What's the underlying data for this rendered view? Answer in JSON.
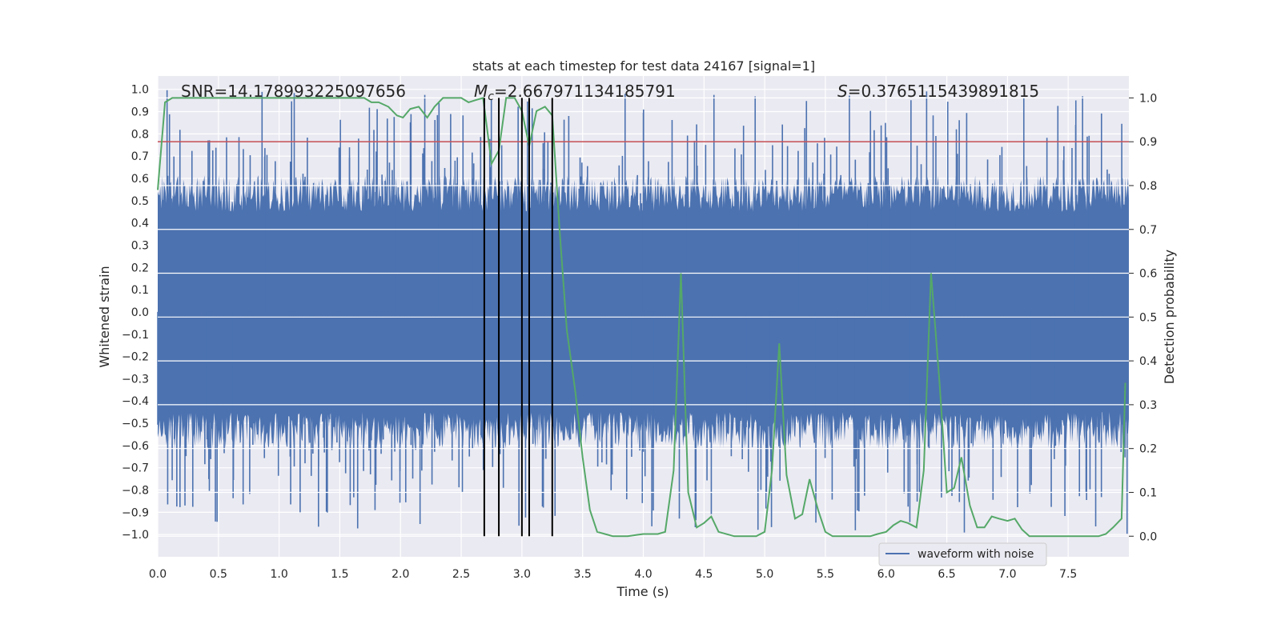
{
  "chart_data": {
    "type": "line",
    "title": "stats at each timestep for test data 24167 [signal=1]",
    "xlabel": "Time (s)",
    "ylabel_left": "Whitened strain",
    "ylabel_right": "Detection probability",
    "xlim": [
      0.0,
      8.0
    ],
    "ylim_left": [
      -1.1,
      1.06
    ],
    "ylim_right": [
      -0.047,
      1.05
    ],
    "x_ticks": [
      0.0,
      0.5,
      1.0,
      1.5,
      2.0,
      2.5,
      3.0,
      3.5,
      4.0,
      4.5,
      5.0,
      5.5,
      6.0,
      6.5,
      7.0,
      7.5
    ],
    "x_tick_labels": [
      "0.0",
      "0.5",
      "1.0",
      "1.5",
      "2.0",
      "2.5",
      "3.0",
      "3.5",
      "4.0",
      "4.5",
      "5.0",
      "5.5",
      "6.0",
      "6.5",
      "7.0",
      "7.5"
    ],
    "y_left_ticks": [
      1.0,
      0.9,
      0.8,
      0.7,
      0.6,
      0.5,
      0.4,
      0.3,
      0.2,
      0.1,
      0.0,
      -0.1,
      -0.2,
      -0.3,
      -0.4,
      -0.5,
      -0.6,
      -0.7,
      -0.8,
      -0.9,
      -1.0
    ],
    "y_left_tick_labels": [
      "1.0",
      "0.9",
      "0.8",
      "0.7",
      "0.6",
      "0.5",
      "0.4",
      "0.3",
      "0.2",
      "0.1",
      "0.0",
      "−0.1",
      "−0.2",
      "−0.3",
      "−0.4",
      "−0.5",
      "−0.6",
      "−0.7",
      "−0.8",
      "−0.9",
      "−1.0"
    ],
    "y_right_ticks": [
      1.0,
      0.9,
      0.8,
      0.7,
      0.6,
      0.5,
      0.4,
      0.3,
      0.2,
      0.1,
      0.0
    ],
    "y_right_tick_labels": [
      "1.0",
      "0.9",
      "0.8",
      "0.7",
      "0.6",
      "0.5",
      "0.4",
      "0.3",
      "0.2",
      "0.1",
      "0.0"
    ],
    "annotations": {
      "snr_label": "SNR=14.178993225097656",
      "mc_symbol": "M",
      "mc_subscript": "c",
      "mc_value": "=2.667971134185791",
      "s_symbol": "S",
      "s_value": "=0.3765115439891815"
    },
    "threshold": {
      "value_right_axis": 0.9,
      "color": "#c44e52"
    },
    "vertical_markers": [
      2.69,
      2.81,
      3.0,
      3.06,
      3.25
    ],
    "series": [
      {
        "name": "waveform with noise",
        "axis": "left",
        "color": "#4c72b0",
        "style": "dense noise trace",
        "envelope": {
          "core_abs": 0.45,
          "typical_peak_abs": 0.75,
          "max_abs": 1.0
        }
      },
      {
        "name": "detection probability",
        "axis": "right",
        "color": "#55a868",
        "x": [
          0.0,
          0.06,
          0.12,
          0.2,
          0.4,
          0.6,
          0.8,
          1.0,
          1.2,
          1.4,
          1.6,
          1.7,
          1.76,
          1.82,
          1.9,
          1.97,
          2.02,
          2.08,
          2.15,
          2.22,
          2.28,
          2.35,
          2.42,
          2.5,
          2.56,
          2.62,
          2.68,
          2.75,
          2.81,
          2.87,
          2.94,
          3.0,
          3.06,
          3.12,
          3.19,
          3.25,
          3.31,
          3.37,
          3.44,
          3.5,
          3.56,
          3.62,
          3.75,
          3.87,
          4.0,
          4.12,
          4.18,
          4.25,
          4.31,
          4.37,
          4.44,
          4.5,
          4.56,
          4.62,
          4.75,
          4.87,
          4.93,
          5.0,
          5.06,
          5.12,
          5.18,
          5.25,
          5.31,
          5.37,
          5.44,
          5.5,
          5.56,
          5.62,
          5.75,
          5.87,
          5.93,
          6.0,
          6.06,
          6.12,
          6.18,
          6.25,
          6.31,
          6.37,
          6.44,
          6.5,
          6.56,
          6.62,
          6.69,
          6.75,
          6.81,
          6.87,
          6.93,
          7.0,
          7.06,
          7.12,
          7.18,
          7.25,
          7.37,
          7.5,
          7.62,
          7.75,
          7.81,
          7.87,
          7.94,
          7.97
        ],
        "y": [
          0.79,
          0.99,
          1.0,
          1.0,
          1.0,
          1.0,
          1.0,
          1.0,
          1.0,
          1.0,
          1.0,
          1.0,
          0.99,
          0.99,
          0.98,
          0.96,
          0.955,
          0.975,
          0.98,
          0.955,
          0.98,
          1.0,
          1.0,
          1.0,
          0.99,
          0.995,
          1.0,
          0.85,
          0.88,
          1.0,
          1.0,
          0.97,
          0.89,
          0.97,
          0.98,
          0.96,
          0.7,
          0.47,
          0.33,
          0.18,
          0.06,
          0.01,
          0.0,
          0.0,
          0.005,
          0.005,
          0.01,
          0.15,
          0.6,
          0.1,
          0.02,
          0.03,
          0.045,
          0.01,
          0.0,
          0.0,
          0.0,
          0.01,
          0.15,
          0.44,
          0.14,
          0.04,
          0.05,
          0.13,
          0.06,
          0.01,
          0.0,
          0.0,
          0.0,
          0.0,
          0.005,
          0.01,
          0.025,
          0.035,
          0.03,
          0.02,
          0.15,
          0.6,
          0.35,
          0.1,
          0.11,
          0.18,
          0.07,
          0.02,
          0.02,
          0.045,
          0.04,
          0.035,
          0.04,
          0.015,
          0.0,
          0.0,
          0.0,
          0.0,
          0.0,
          0.0,
          0.005,
          0.02,
          0.04,
          0.35
        ]
      }
    ],
    "legend": {
      "placement": "lower-right",
      "entries": [
        "waveform with noise"
      ]
    }
  }
}
